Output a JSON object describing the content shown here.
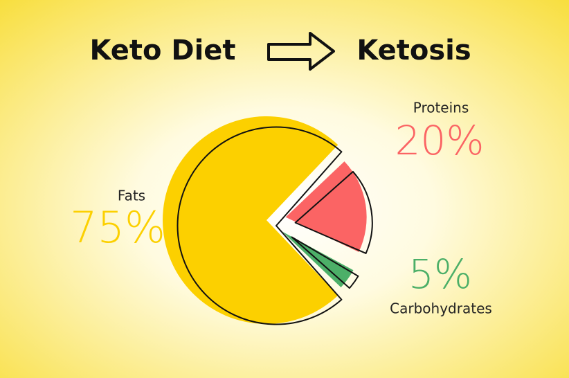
{
  "chart_data": {
    "type": "pie",
    "title": "Keto Diet",
    "annotations": [
      "Ketosis"
    ],
    "categories": [
      "Fats",
      "Proteins",
      "Carbohydrates"
    ],
    "values": [
      75,
      20,
      5
    ],
    "value_labels": [
      "75%",
      "20%",
      "5%"
    ],
    "colors": [
      "#fcd000",
      "#fb6464",
      "#4caf68"
    ]
  }
}
